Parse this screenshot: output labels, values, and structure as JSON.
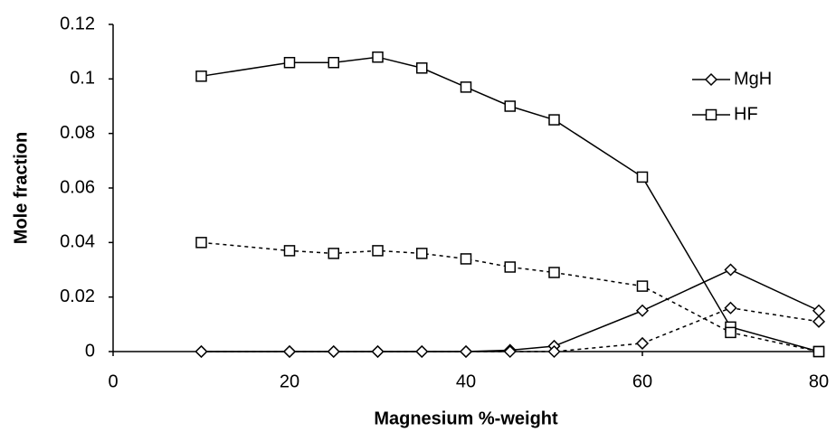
{
  "chart_data": {
    "type": "line",
    "xlabel": "Magnesium %-weight",
    "ylabel": "Mole fraction",
    "x": [
      10,
      20,
      25,
      30,
      35,
      40,
      45,
      50,
      60,
      70,
      80
    ],
    "xlim": [
      0,
      80
    ],
    "xticks": [
      0,
      20,
      40,
      60,
      80
    ],
    "ylim": [
      0,
      0.12
    ],
    "yticks": [
      0,
      0.02,
      0.04,
      0.06,
      0.08,
      0.1,
      0.12
    ],
    "grid": false,
    "legend": "upper right",
    "series": [
      {
        "name": "MgH",
        "marker": "diamond",
        "dash": false,
        "color": "#000000",
        "values": [
          0,
          0,
          0,
          0,
          0,
          0,
          0.0005,
          0.002,
          0.015,
          0.03,
          0.015
        ]
      },
      {
        "name": "HF",
        "marker": "square",
        "dash": false,
        "color": "#000000",
        "values": [
          0.101,
          0.106,
          0.106,
          0.108,
          0.104,
          0.097,
          0.09,
          0.085,
          0.064,
          0.009,
          0
        ]
      },
      {
        "marker": "diamond",
        "dash": true,
        "color": "#000000",
        "values": [
          0,
          0,
          0,
          0,
          0,
          0,
          0,
          0,
          0.003,
          0.016,
          0.011
        ]
      },
      {
        "marker": "square",
        "dash": true,
        "color": "#000000",
        "values": [
          0.04,
          0.037,
          0.036,
          0.037,
          0.036,
          0.034,
          0.031,
          0.029,
          0.024,
          0.007,
          0
        ]
      }
    ]
  }
}
